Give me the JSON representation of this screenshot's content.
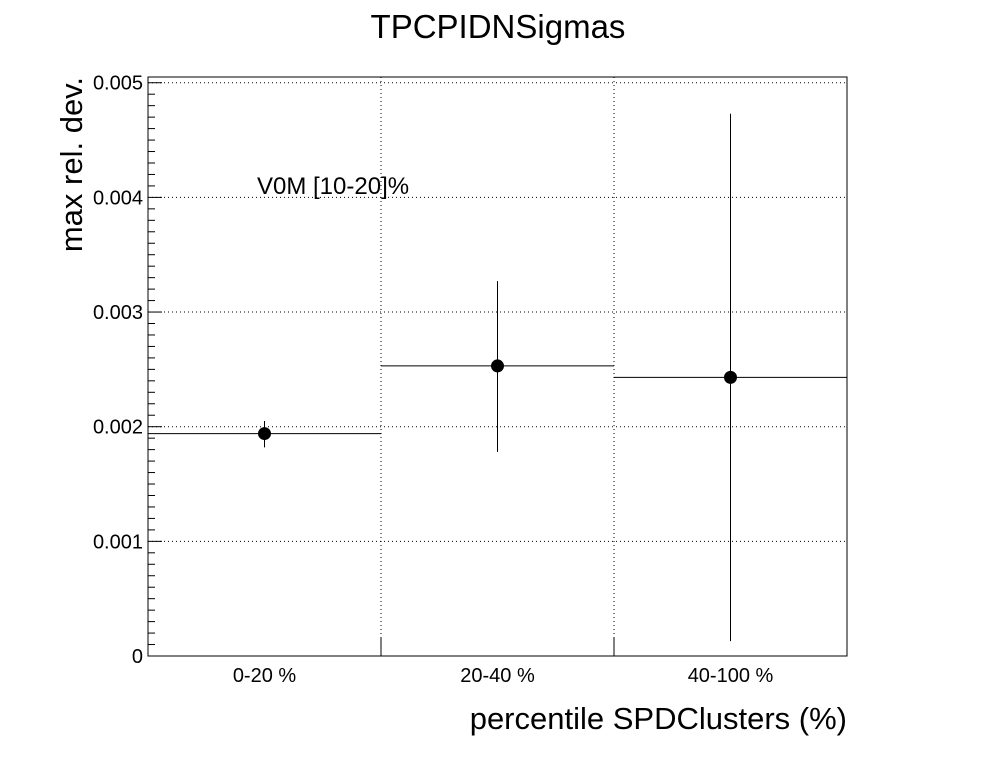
{
  "chart_data": {
    "type": "scatter",
    "title": "TPCPIDNSigmas",
    "xlabel": "percentile SPDClusters (%)",
    "ylabel": "max rel. dev.",
    "categories": [
      "0-20 %",
      "20-40 %",
      "40-100 %"
    ],
    "ylim": [
      0,
      0.00505
    ],
    "yticks": [
      "0",
      "0.001",
      "0.002",
      "0.003",
      "0.004",
      "0.005"
    ],
    "ytick_values": [
      0,
      0.001,
      0.002,
      0.003,
      0.004,
      0.005
    ],
    "grid": true,
    "annotation": "V0M [10-20]%",
    "series": [
      {
        "values": [
          0.00194,
          0.00253,
          0.00243
        ],
        "err_low": [
          0.00012,
          0.00075,
          0.0023
        ],
        "err_high": [
          0.00011,
          0.00074,
          0.0023
        ]
      }
    ]
  }
}
